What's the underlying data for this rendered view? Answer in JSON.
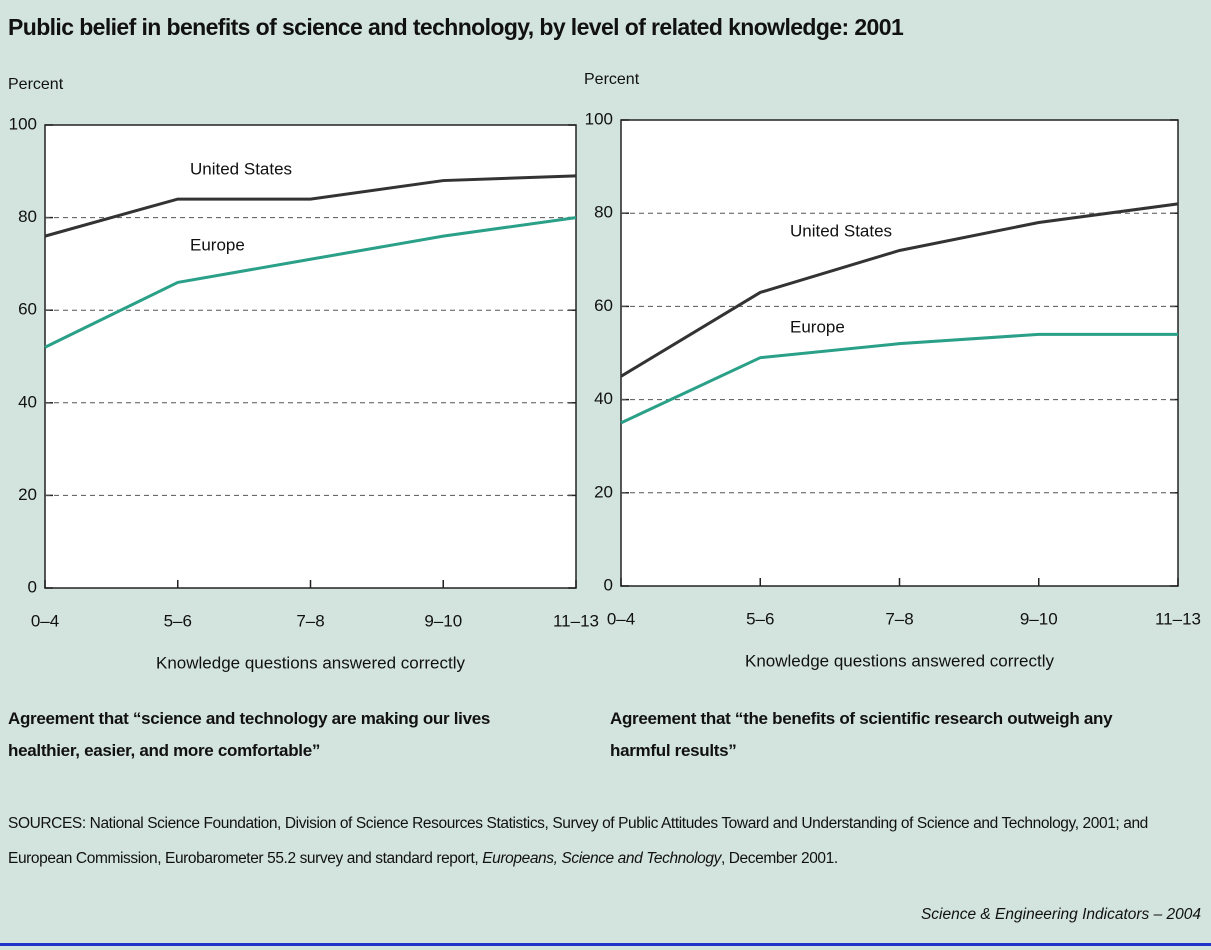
{
  "title": "Public belief in benefits of science and technology, by level of related knowledge: 2001",
  "sources": {
    "text": "SOURCES: National Science Foundation, Division of Science Resources Statistics, Survey of Public Attitudes Toward and Understanding of Science and Technology, 2001; and European Commission, Eurobarometer 55.2 survey and standard report, ",
    "report": "Europeans,  Science and Technology",
    "end": ", December 2001."
  },
  "credit": "Science & Engineering Indicators – 2004",
  "chart_data": [
    {
      "type": "line",
      "y_label": "Percent",
      "x_label": "Knowledge questions answered correctly",
      "caption": "Agreement that “science and technology are making our lives healthier, easier, and more comfortable”",
      "categories": [
        "0–4",
        "5–6",
        "7–8",
        "9–10",
        "11–13"
      ],
      "series": [
        {
          "name": "United States",
          "color": "#333333",
          "values": [
            76,
            84,
            84,
            88,
            89
          ]
        },
        {
          "name": "Europe",
          "color": "#2aa088",
          "values": [
            52,
            66,
            71,
            76,
            80
          ]
        }
      ],
      "ylim": [
        0,
        100
      ],
      "yticks": [
        0,
        20,
        40,
        60,
        80,
        100
      ],
      "grid": true
    },
    {
      "type": "line",
      "y_label": "Percent",
      "x_label": "Knowledge questions answered correctly",
      "caption": "Agreement that “the benefits of scientific research outweigh any harmful results”",
      "categories": [
        "0–4",
        "5–6",
        "7–8",
        "9–10",
        "11–13"
      ],
      "series": [
        {
          "name": "United States",
          "color": "#333333",
          "values": [
            45,
            63,
            72,
            78,
            82
          ]
        },
        {
          "name": "Europe",
          "color": "#2aa088",
          "values": [
            35,
            49,
            52,
            54,
            54
          ]
        }
      ],
      "ylim": [
        0,
        100
      ],
      "yticks": [
        0,
        20,
        40,
        60,
        80,
        100
      ],
      "grid": true
    }
  ]
}
